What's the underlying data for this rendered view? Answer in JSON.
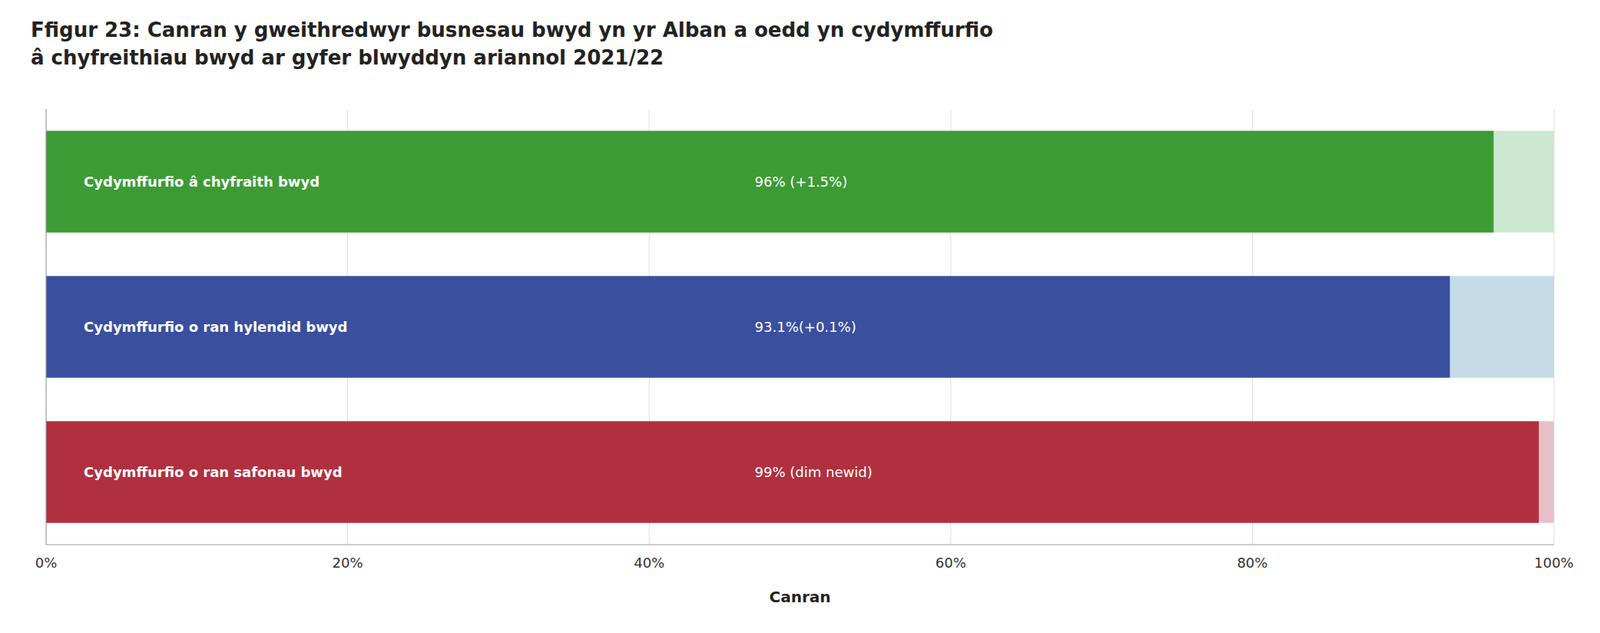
{
  "chart_data": {
    "type": "bar",
    "orientation": "horizontal",
    "title": "Ffigur 23: Canran y gweithredwyr busnesau bwyd yn yr Alban a oedd yn cydymffurfio\nâ chyfreithiau bwyd ar gyfer blwyddyn ariannol 2021/22",
    "x_label": "Canran",
    "categories": [
      "Cydymffurfio â chyfraith bwyd",
      "Cydymffurfio o ran hylendid bwyd",
      "Cydymffurfio o ran safonau bwyd"
    ],
    "values": [
      96,
      93.1,
      99
    ],
    "value_labels": [
      "96% (+1.5%)",
      "93.1%(+0.1%)",
      "99% (dim newid)"
    ],
    "background_values": [
      100,
      100,
      100
    ],
    "colors": [
      "#3d9b35",
      "#3a4f9e",
      "#b03040"
    ],
    "background_colors": [
      "#cce8d0",
      "#c5dce8",
      "#e8c0c8"
    ],
    "xlim": [
      0,
      100
    ],
    "xticks": [
      {
        "value": 0,
        "label": "0%"
      },
      {
        "value": 20,
        "label": "20%"
      },
      {
        "value": 40,
        "label": "40%"
      },
      {
        "value": 60,
        "label": "60%"
      },
      {
        "value": 80,
        "label": "80%"
      },
      {
        "value": 100,
        "label": "100%"
      }
    ],
    "grid": true,
    "tick_labels": "x"
  }
}
